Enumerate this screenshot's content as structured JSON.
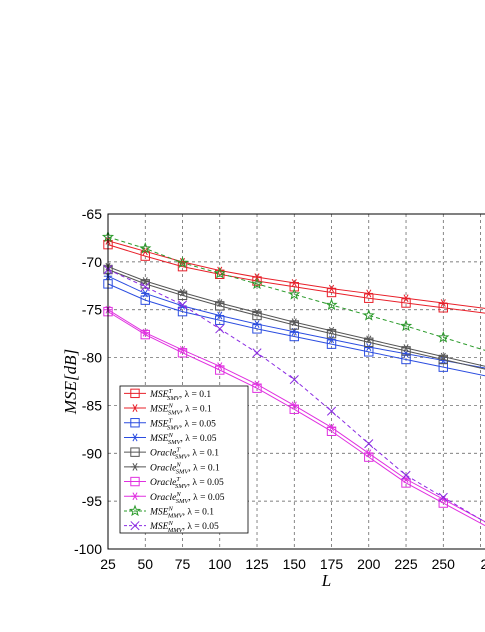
{
  "chart_data": {
    "type": "line",
    "title": "",
    "xlabel": "L",
    "ylabel": "MSE[dB]",
    "xlim": [
      25,
      275
    ],
    "ylim": [
      -100,
      -65
    ],
    "x_ticks": [
      "25",
      "50",
      "75",
      "100",
      "125",
      "150",
      "175",
      "200",
      "225",
      "250",
      "2"
    ],
    "y_ticks": [
      "-65",
      "-70",
      "-75",
      "-80",
      "-85",
      "-90",
      "-95",
      "-100"
    ],
    "grid": true,
    "grid_style": "dashed",
    "legend_position": "bottom-left",
    "x": [
      25,
      50,
      75,
      100,
      125,
      150,
      175,
      200,
      225,
      250
    ],
    "series": [
      {
        "name": "MSE^T_SMV, λ = 0.1",
        "color": "#e8202a",
        "marker": "square",
        "dash": false,
        "values": [
          -68.2,
          -69.4,
          -70.5,
          -71.3,
          -72.0,
          -72.6,
          -73.2,
          -73.8,
          -74.3,
          -74.8
        ]
      },
      {
        "name": "MSE^N_SMV, λ = 0.1",
        "color": "#e8202a",
        "marker": "star6",
        "dash": false,
        "values": [
          -67.8,
          -68.9,
          -70.0,
          -70.9,
          -71.6,
          -72.2,
          -72.8,
          -73.3,
          -73.8,
          -74.3
        ]
      },
      {
        "name": "MSE^T_SMV, λ = 0.05",
        "color": "#2b4de0",
        "marker": "square",
        "dash": false,
        "values": [
          -72.3,
          -74.0,
          -75.2,
          -76.1,
          -77.0,
          -77.8,
          -78.6,
          -79.4,
          -80.2,
          -81.0
        ]
      },
      {
        "name": "MSE^N_SMV, λ = 0.05",
        "color": "#2b4de0",
        "marker": "star6",
        "dash": false,
        "values": [
          -71.5,
          -73.3,
          -74.6,
          -75.6,
          -76.5,
          -77.3,
          -78.1,
          -78.9,
          -79.6,
          -80.3
        ]
      },
      {
        "name": "Oracle^T_SMV, λ = 0.1",
        "color": "#555555",
        "marker": "square",
        "dash": false,
        "values": [
          -70.8,
          -72.3,
          -73.5,
          -74.6,
          -75.6,
          -76.6,
          -77.5,
          -78.4,
          -79.3,
          -80.2
        ]
      },
      {
        "name": "Oracle^N_SMV, λ = 0.1",
        "color": "#555555",
        "marker": "star6",
        "dash": false,
        "values": [
          -70.5,
          -72.0,
          -73.2,
          -74.3,
          -75.3,
          -76.3,
          -77.2,
          -78.1,
          -79.0,
          -79.9
        ]
      },
      {
        "name": "Oracle^T_SMV, λ = 0.05",
        "color": "#e030e0",
        "marker": "square",
        "dash": false,
        "values": [
          -75.2,
          -77.6,
          -79.5,
          -81.3,
          -83.2,
          -85.4,
          -87.7,
          -90.4,
          -93.1,
          -95.2
        ]
      },
      {
        "name": "Oracle^N_SMV, λ = 0.05",
        "color": "#e030e0",
        "marker": "star6",
        "dash": false,
        "values": [
          -75.0,
          -77.4,
          -79.2,
          -80.9,
          -82.8,
          -85.0,
          -87.3,
          -90.0,
          -92.7,
          -94.8
        ]
      },
      {
        "name": "MSE^N_MMV, λ = 0.1",
        "color": "#2a9a2a",
        "marker": "pentagram",
        "dash": true,
        "values": [
          -67.4,
          -68.6,
          -70.1,
          -71.2,
          -72.3,
          -73.4,
          -74.5,
          -75.6,
          -76.7,
          -77.9
        ]
      },
      {
        "name": "MSE^N_MMV, λ = 0.05",
        "color": "#8a2be2",
        "marker": "x",
        "dash": true,
        "values": [
          -70.8,
          -72.6,
          -74.5,
          -77.0,
          -79.5,
          -82.3,
          -85.6,
          -89.0,
          -92.3,
          -94.6
        ]
      }
    ],
    "legend_labels": [
      {
        "base": "MSE",
        "sup": "T",
        "sub": "SMV",
        "tail": ", λ = 0.1"
      },
      {
        "base": "MSE",
        "sup": "N",
        "sub": "SMV",
        "tail": ", λ = 0.1"
      },
      {
        "base": "MSE",
        "sup": "T",
        "sub": "SMV",
        "tail": ", λ = 0.05"
      },
      {
        "base": "MSE",
        "sup": "N",
        "sub": "SMV",
        "tail": ", λ = 0.05"
      },
      {
        "base": "Oracle",
        "sup": "T",
        "sub": "SMV",
        "tail": ", λ = 0.1"
      },
      {
        "base": "Oracle",
        "sup": "N",
        "sub": "SMV",
        "tail": ", λ = 0.1"
      },
      {
        "base": "Oracle",
        "sup": "T",
        "sub": "SMV",
        "tail": ", λ = 0.05"
      },
      {
        "base": "Oracle",
        "sup": "N",
        "sub": "SMV",
        "tail": ", λ = 0.05"
      },
      {
        "base": "MSE",
        "sup": "N",
        "sub": "MMV",
        "tail": ", λ = 0.1"
      },
      {
        "base": "MSE",
        "sup": "N",
        "sub": "MMV",
        "tail": ", λ = 0.05"
      }
    ]
  }
}
